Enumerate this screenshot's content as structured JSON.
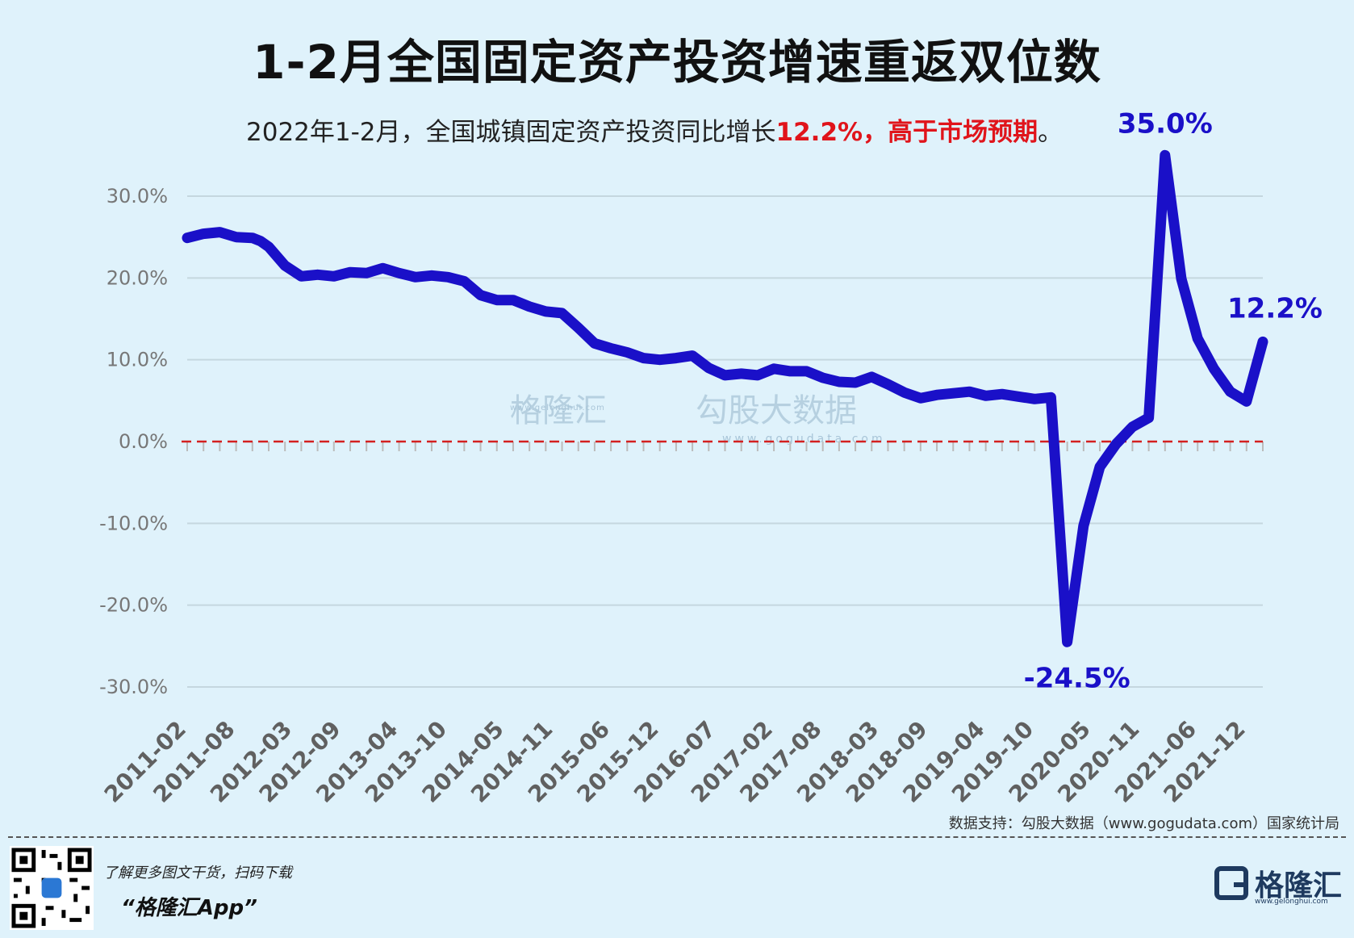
{
  "title": "1-2月全国固定资产投资增速重返双位数",
  "subtitle": {
    "prefix": "2022年1-2月，全国城镇固定资产投资同比增长",
    "highlight": "12.2%，高于市场预期",
    "suffix": "。"
  },
  "source": "数据支持：勾股大数据（www.gogudata.com）国家统计局",
  "footer": {
    "promo": "了解更多图文干货，扫码下载",
    "app": "“格隆汇App”",
    "logo": "格隆汇",
    "logo_url": "www.gelonghui.com"
  },
  "watermark": {
    "left": "格隆汇",
    "left_url": "www.gelonghui.com",
    "right": "勾股大数据",
    "right_url": "www.gogudata.com"
  },
  "colors": {
    "line": "#1a10c8",
    "zero_line": "#d42020",
    "grid": "#c5d7df",
    "annotation": "#1a10c8"
  },
  "chart_data": {
    "type": "line",
    "ylim": [
      -30,
      35
    ],
    "yticks": [
      30,
      20,
      10,
      0,
      -10,
      -20,
      -30
    ],
    "ytick_labels": [
      "30.0%",
      "20.0%",
      "10.0%",
      "0.0%",
      "-10.0%",
      "-20.0%",
      "-30.0%"
    ],
    "xtick_labels": [
      "2011-02",
      "2011-08",
      "2012-03",
      "2012-09",
      "2013-04",
      "2013-10",
      "2014-05",
      "2014-11",
      "2015-06",
      "2015-12",
      "2016-07",
      "2017-02",
      "2017-08",
      "2018-03",
      "2018-09",
      "2019-04",
      "2019-10",
      "2020-05",
      "2020-11",
      "2021-06",
      "2021-12"
    ],
    "x_start": "2011-02",
    "x_end": "2022-02",
    "zero_line": "dashed",
    "series": [
      {
        "points": [
          [
            "2011-02",
            24.9
          ],
          [
            "2011-04",
            25.4
          ],
          [
            "2011-06",
            25.6
          ],
          [
            "2011-08",
            25.0
          ],
          [
            "2011-10",
            24.9
          ],
          [
            "2011-11",
            24.5
          ],
          [
            "2011-12",
            23.8
          ],
          [
            "2012-02",
            21.5
          ],
          [
            "2012-04",
            20.2
          ],
          [
            "2012-06",
            20.4
          ],
          [
            "2012-08",
            20.2
          ],
          [
            "2012-10",
            20.7
          ],
          [
            "2012-12",
            20.6
          ],
          [
            "2013-02",
            21.2
          ],
          [
            "2013-04",
            20.6
          ],
          [
            "2013-06",
            20.1
          ],
          [
            "2013-08",
            20.3
          ],
          [
            "2013-10",
            20.1
          ],
          [
            "2013-12",
            19.6
          ],
          [
            "2014-02",
            17.9
          ],
          [
            "2014-04",
            17.3
          ],
          [
            "2014-06",
            17.3
          ],
          [
            "2014-08",
            16.5
          ],
          [
            "2014-10",
            15.9
          ],
          [
            "2014-12",
            15.7
          ],
          [
            "2015-02",
            13.9
          ],
          [
            "2015-04",
            12.0
          ],
          [
            "2015-06",
            11.4
          ],
          [
            "2015-08",
            10.9
          ],
          [
            "2015-10",
            10.2
          ],
          [
            "2015-12",
            10.0
          ],
          [
            "2016-02",
            10.2
          ],
          [
            "2016-04",
            10.5
          ],
          [
            "2016-06",
            9.0
          ],
          [
            "2016-08",
            8.1
          ],
          [
            "2016-10",
            8.3
          ],
          [
            "2016-12",
            8.1
          ],
          [
            "2017-02",
            8.9
          ],
          [
            "2017-04",
            8.6
          ],
          [
            "2017-06",
            8.6
          ],
          [
            "2017-08",
            7.8
          ],
          [
            "2017-10",
            7.3
          ],
          [
            "2017-12",
            7.2
          ],
          [
            "2018-02",
            7.9
          ],
          [
            "2018-04",
            7.0
          ],
          [
            "2018-06",
            6.0
          ],
          [
            "2018-08",
            5.3
          ],
          [
            "2018-10",
            5.7
          ],
          [
            "2018-12",
            5.9
          ],
          [
            "2019-02",
            6.1
          ],
          [
            "2019-04",
            5.6
          ],
          [
            "2019-06",
            5.8
          ],
          [
            "2019-08",
            5.5
          ],
          [
            "2019-10",
            5.2
          ],
          [
            "2019-12",
            5.4
          ],
          [
            "2020-02",
            -24.5
          ],
          [
            "2020-04",
            -10.3
          ],
          [
            "2020-06",
            -3.1
          ],
          [
            "2020-08",
            -0.3
          ],
          [
            "2020-10",
            1.8
          ],
          [
            "2020-12",
            2.9
          ],
          [
            "2021-02",
            35.0
          ],
          [
            "2021-04",
            19.9
          ],
          [
            "2021-06",
            12.6
          ],
          [
            "2021-08",
            8.9
          ],
          [
            "2021-10",
            6.1
          ],
          [
            "2021-12",
            4.9
          ],
          [
            "2022-02",
            12.2
          ]
        ]
      }
    ],
    "annotations": [
      {
        "x": "2021-02",
        "y": 35.0,
        "text": "35.0%"
      },
      {
        "x": "2020-02",
        "y": -24.5,
        "text": "-24.5%"
      },
      {
        "x": "2022-02",
        "y": 12.2,
        "text": "12.2%"
      }
    ]
  }
}
